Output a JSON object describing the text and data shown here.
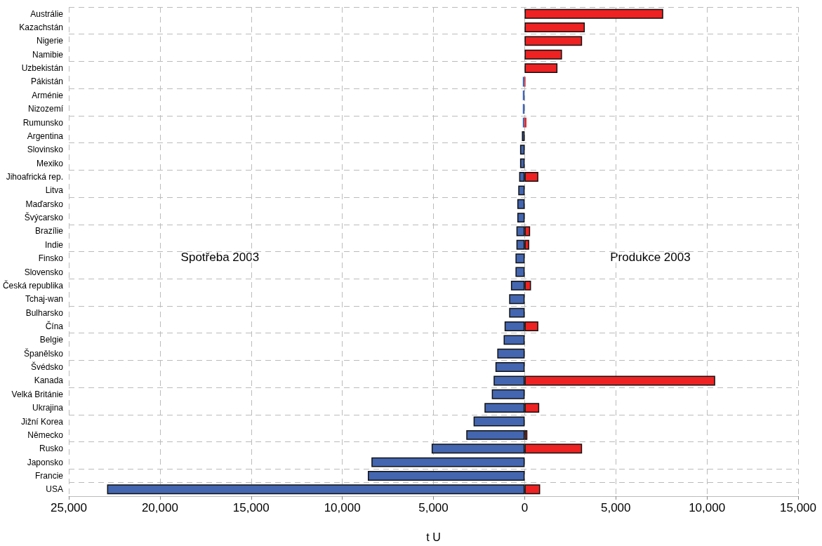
{
  "chart_data": {
    "type": "bar",
    "orientation": "horizontal",
    "stacked": true,
    "xlabel": "t U",
    "categories": [
      "Austrálie",
      "Kazachstán",
      "Nigerie",
      "Namibie",
      "Uzbekistán",
      "Pákistán",
      "Arménie",
      "Nizozemí",
      "Rumunsko",
      "Argentina",
      "Slovinsko",
      "Mexiko",
      "Jihoafrická rep.",
      "Litva",
      "Maďarsko",
      "Švýcarsko",
      "Brazílie",
      "Indie",
      "Finsko",
      "Slovensko",
      "Česká republika",
      "Tchaj-wan",
      "Bulharsko",
      "Čína",
      "Belgie",
      "Španělsko",
      "Švédsko",
      "Kanada",
      "Velká Británie",
      "Ukrajina",
      "Jižní Korea",
      "Německo",
      "Rusko",
      "Japonsko",
      "Francie",
      "USA"
    ],
    "series": [
      {
        "name": "Spotřeba 2003",
        "color": "#4466b0",
        "values": [
          null,
          null,
          null,
          null,
          null,
          -100,
          -100,
          -100,
          -100,
          -150,
          -250,
          -250,
          -300,
          -350,
          -400,
          -400,
          -450,
          -450,
          -500,
          -500,
          -750,
          -850,
          -850,
          -1100,
          -1150,
          -1500,
          -1600,
          -1700,
          -1800,
          -2200,
          -2800,
          -3200,
          -5100,
          -8400,
          -8600,
          -22900
        ]
      },
      {
        "name": "Produkce 2003",
        "color": "#ee2222",
        "values": [
          7600,
          3300,
          3150,
          2050,
          1800,
          50,
          null,
          null,
          100,
          null,
          null,
          null,
          750,
          null,
          null,
          null,
          300,
          250,
          null,
          null,
          350,
          null,
          null,
          750,
          null,
          null,
          null,
          10450,
          null,
          800,
          null,
          150,
          3150,
          null,
          null,
          850
        ]
      }
    ],
    "xlim": [
      -25000,
      15000
    ],
    "xticks": [
      {
        "value": -25000,
        "label": "25,000"
      },
      {
        "value": -20000,
        "label": "20,000"
      },
      {
        "value": -15000,
        "label": "15,000"
      },
      {
        "value": -10000,
        "label": "10,000"
      },
      {
        "value": -5000,
        "label": "5,000"
      },
      0,
      {
        "value": 5000,
        "label": "5,000"
      },
      {
        "value": 10000,
        "label": "10,000"
      },
      {
        "value": 15000,
        "label": "15,000"
      }
    ],
    "grid": true,
    "legend": false
  }
}
